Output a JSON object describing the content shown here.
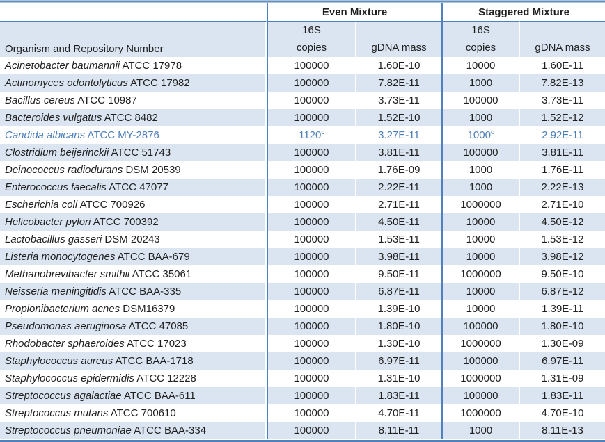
{
  "colors": {
    "border_blue": "#4f81bd",
    "stripe": "#dbe5f1",
    "highlight_text": "#4a7ebb"
  },
  "table": {
    "headers": {
      "organism": "Organism and Repository Number",
      "even_mixture": "Even Mixture",
      "staggered_mixture": "Staggered Mixture",
      "copies_line1": "16S",
      "copies_line2": "copies",
      "gdna": "gDNA mass"
    },
    "rows": [
      {
        "name": "Acinetobacter baumannii",
        "id": "ATCC 17978",
        "even_copies": "100000",
        "even_gdna": "1.60E-10",
        "stag_copies": "10000",
        "stag_gdna": "1.60E-11"
      },
      {
        "name": "Actinomyces odontolyticus",
        "id": "ATCC 17982",
        "even_copies": "100000",
        "even_gdna": "7.82E-11",
        "stag_copies": "1000",
        "stag_gdna": "7.82E-13"
      },
      {
        "name": "Bacillus cereus",
        "id": "ATCC 10987",
        "even_copies": "100000",
        "even_gdna": "3.73E-11",
        "stag_copies": "100000",
        "stag_gdna": "3.73E-11"
      },
      {
        "name": "Bacteroides vulgatus",
        "id": "ATCC 8482",
        "even_copies": "100000",
        "even_gdna": "1.52E-10",
        "stag_copies": "1000",
        "stag_gdna": "1.52E-12"
      },
      {
        "name": "Candida albicans",
        "id": "ATCC MY-2876",
        "even_copies": "1120",
        "even_copies_sup": "c",
        "even_gdna": "3.27E-11",
        "stag_copies": "1000",
        "stag_copies_sup": "c",
        "stag_gdna": "2.92E-11",
        "highlight": true
      },
      {
        "name": "Clostridium beijerinckii",
        "id": "ATCC 51743",
        "even_copies": "100000",
        "even_gdna": "3.81E-11",
        "stag_copies": "100000",
        "stag_gdna": "3.81E-11"
      },
      {
        "name": "Deinococcus radiodurans",
        "id": "DSM 20539",
        "even_copies": "100000",
        "even_gdna": "1.76E-09",
        "stag_copies": "1000",
        "stag_gdna": "1.76E-11"
      },
      {
        "name": "Enterococcus faecalis",
        "id": "ATCC 47077",
        "even_copies": "100000",
        "even_gdna": "2.22E-11",
        "stag_copies": "1000",
        "stag_gdna": "2.22E-13"
      },
      {
        "name": "Escherichia coli",
        "id": "ATCC 700926",
        "even_copies": "100000",
        "even_gdna": "2.71E-11",
        "stag_copies": "1000000",
        "stag_gdna": "2.71E-10"
      },
      {
        "name": "Helicobacter pylori",
        "id": "ATCC 700392",
        "even_copies": "100000",
        "even_gdna": "4.50E-11",
        "stag_copies": "10000",
        "stag_gdna": "4.50E-12"
      },
      {
        "name": "Lactobacillus gasseri",
        "id": "DSM 20243",
        "even_copies": "100000",
        "even_gdna": "1.53E-11",
        "stag_copies": "10000",
        "stag_gdna": "1.53E-12"
      },
      {
        "name": "Listeria monocytogenes",
        "id": "ATCC BAA-679",
        "even_copies": "100000",
        "even_gdna": "3.98E-11",
        "stag_copies": "10000",
        "stag_gdna": "3.98E-12"
      },
      {
        "name": "Methanobrevibacter smithii",
        "id": "ATCC 35061",
        "even_copies": "100000",
        "even_gdna": "9.50E-11",
        "stag_copies": "1000000",
        "stag_gdna": "9.50E-10"
      },
      {
        "name": "Neisseria meningitidis",
        "id": "ATCC BAA-335",
        "even_copies": "100000",
        "even_gdna": "6.87E-11",
        "stag_copies": "10000",
        "stag_gdna": "6.87E-12"
      },
      {
        "name": "Propionibacterium acnes",
        "id": "DSM16379",
        "even_copies": "100000",
        "even_gdna": "1.39E-10",
        "stag_copies": "10000",
        "stag_gdna": "1.39E-11"
      },
      {
        "name": "Pseudomonas aeruginosa",
        "id": "ATCC 47085",
        "even_copies": "100000",
        "even_gdna": "1.80E-10",
        "stag_copies": "100000",
        "stag_gdna": "1.80E-10"
      },
      {
        "name": "Rhodobacter sphaeroides",
        "id": "ATCC 17023",
        "even_copies": "100000",
        "even_gdna": "1.30E-10",
        "stag_copies": "1000000",
        "stag_gdna": "1.30E-09"
      },
      {
        "name": "Staphylococcus aureus",
        "id": "ATCC BAA-1718",
        "even_copies": "100000",
        "even_gdna": "6.97E-11",
        "stag_copies": "100000",
        "stag_gdna": "6.97E-11"
      },
      {
        "name": "Staphylococcus epidermidis",
        "id": "ATCC 12228",
        "even_copies": "100000",
        "even_gdna": "1.31E-10",
        "stag_copies": "1000000",
        "stag_gdna": "1.31E-09"
      },
      {
        "name": "Streptococcus agalactiae",
        "id": "ATCC BAA-611",
        "even_copies": "100000",
        "even_gdna": "1.83E-11",
        "stag_copies": "100000",
        "stag_gdna": "1.83E-11"
      },
      {
        "name": "Streptococcus mutans",
        "id": "ATCC 700610",
        "even_copies": "100000",
        "even_gdna": "4.70E-11",
        "stag_copies": "1000000",
        "stag_gdna": "4.70E-10"
      },
      {
        "name": "Streptococcus pneumoniae",
        "id": "ATCC BAA-334",
        "even_copies": "100000",
        "even_gdna": "8.11E-11",
        "stag_copies": "1000",
        "stag_gdna": "8.11E-13"
      }
    ]
  }
}
